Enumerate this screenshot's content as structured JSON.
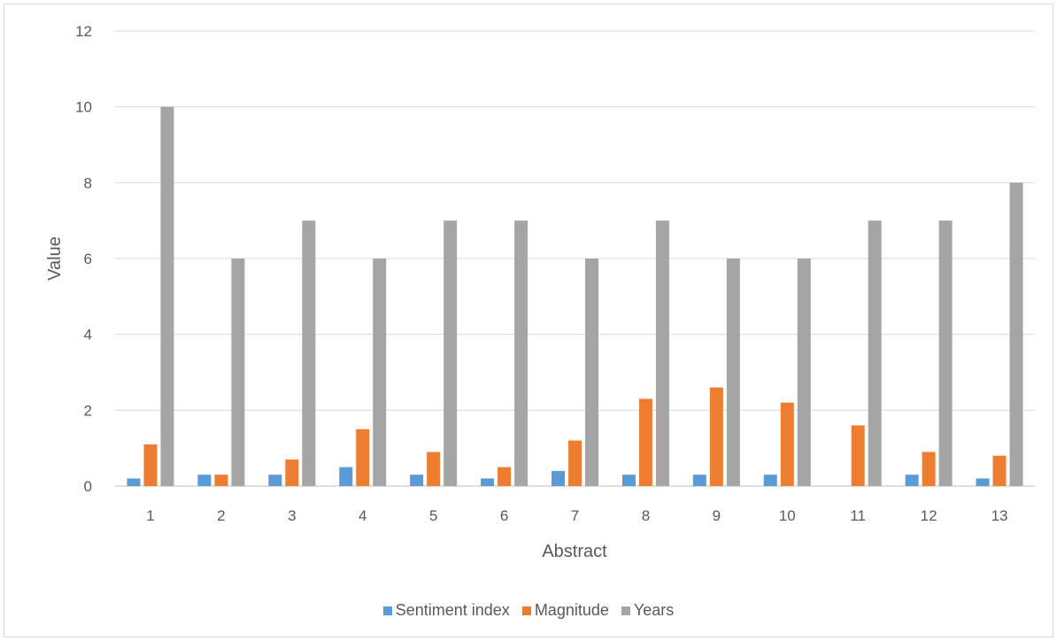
{
  "chart_data": {
    "type": "bar",
    "xlabel": "Abstract",
    "ylabel": "Value",
    "categories": [
      "1",
      "2",
      "3",
      "4",
      "5",
      "6",
      "7",
      "8",
      "9",
      "10",
      "11",
      "12",
      "13"
    ],
    "ylim": [
      0,
      12
    ],
    "yticks": [
      0,
      2,
      4,
      6,
      8,
      10,
      12
    ],
    "grid": true,
    "legend_position": "bottom",
    "series": [
      {
        "name": "Sentiment index",
        "color": "#5b9bd5",
        "values": [
          0.2,
          0.3,
          0.3,
          0.5,
          0.3,
          0.2,
          0.4,
          0.3,
          0.3,
          0.3,
          0.0,
          0.3,
          0.2
        ]
      },
      {
        "name": "Magnitude",
        "color": "#ed7d31",
        "values": [
          1.1,
          0.3,
          0.7,
          1.5,
          0.9,
          0.5,
          1.2,
          2.3,
          2.6,
          2.2,
          1.6,
          0.9,
          0.8
        ]
      },
      {
        "name": "Years",
        "color": "#a5a5a5",
        "values": [
          10,
          6,
          7,
          6,
          7,
          7,
          6,
          7,
          6,
          6,
          7,
          7,
          8
        ]
      }
    ]
  }
}
